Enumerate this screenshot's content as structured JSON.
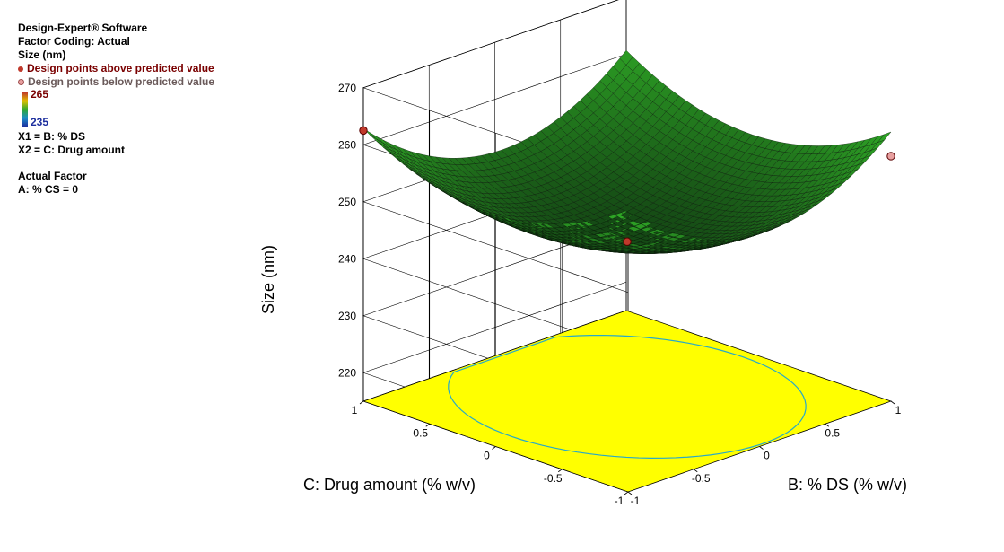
{
  "header": {
    "software": "Design-Expert® Software",
    "coding": "Factor Coding: Actual",
    "response": "Size (nm)",
    "legend_above": "Design points above predicted value",
    "legend_below": "Design points below predicted value",
    "colorbar_max": "265",
    "colorbar_min": "235",
    "x1": "X1 = B: % DS",
    "x2": "X2 = C: Drug amount",
    "actual_factor_title": "Actual Factor",
    "actual_factor_value": "A: % CS = 0"
  },
  "colors": {
    "floor": "#ffff00",
    "surface": "#2e9b2e",
    "contour": "#27a9c9",
    "point_above": "#c0392b",
    "point_below": "#e8a0a0"
  },
  "chart_data": {
    "type": "surface",
    "z_label": "Size (nm)",
    "x_label": "B: % DS (% w/v)",
    "y_label": "C: Drug amount (% w/v)",
    "z_ticks": [
      "220",
      "230",
      "240",
      "250",
      "260",
      "270"
    ],
    "z_tick_values": [
      220,
      230,
      240,
      250,
      260,
      270
    ],
    "zlim": [
      215,
      270
    ],
    "x_ticks": [
      "-1",
      "-0.5",
      "0",
      "0.5",
      "1"
    ],
    "x_tick_values": [
      -1,
      -0.5,
      0,
      0.5,
      1
    ],
    "y_ticks": [
      "-1",
      "-0.5",
      "0",
      "0.5",
      "1"
    ],
    "y_tick_values": [
      -1,
      -0.5,
      0,
      0.5,
      1
    ],
    "xlim": [
      -1,
      1
    ],
    "ylim": [
      -1,
      1
    ],
    "model": {
      "z0": 243.5,
      "x0": 0.05,
      "y0": 0.05,
      "a": 11,
      "b": 8
    },
    "design_points": [
      {
        "B": -1,
        "C": 1,
        "size": 262.5,
        "position": "above"
      },
      {
        "B": 1,
        "C": -1,
        "size": 258,
        "position": "below"
      },
      {
        "B": 0,
        "C": 0,
        "size": 243,
        "position": "above"
      }
    ],
    "grid": true
  }
}
